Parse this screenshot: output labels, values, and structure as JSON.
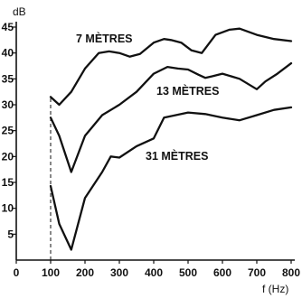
{
  "chart_data": {
    "type": "line",
    "xlabel": "f (Hz)",
    "ylabel": "dB",
    "xlim": [
      0,
      800
    ],
    "ylim": [
      0,
      45
    ],
    "x_ticks": [
      0,
      100,
      200,
      300,
      400,
      500,
      600,
      700,
      800
    ],
    "y_ticks": [
      5,
      10,
      15,
      20,
      25,
      30,
      35,
      40,
      45
    ],
    "grid": false,
    "reference_line": {
      "x": 100,
      "y_from": 0,
      "y_to": 31.5
    },
    "series": [
      {
        "name": "7 MÈTRES",
        "x": [
          100,
          125,
          160,
          200,
          240,
          270,
          300,
          330,
          360,
          400,
          430,
          450,
          480,
          510,
          540,
          580,
          620,
          650,
          700,
          750,
          800
        ],
        "y": [
          31.5,
          30,
          32.5,
          37,
          40,
          40.3,
          40,
          39.3,
          39.8,
          42,
          42.7,
          42.5,
          42,
          40.5,
          40,
          43.5,
          44.5,
          44.7,
          43.5,
          42.7,
          42.3
        ]
      },
      {
        "name": "13 MÈTRES",
        "x": [
          100,
          125,
          160,
          200,
          250,
          300,
          350,
          400,
          440,
          470,
          500,
          530,
          550,
          570,
          600,
          650,
          700,
          725,
          760,
          800
        ],
        "y": [
          27.5,
          24,
          17,
          24,
          28,
          30,
          32.5,
          36,
          37.3,
          37,
          36.8,
          35.8,
          35.2,
          35.5,
          36,
          35,
          33,
          34.5,
          36,
          38
        ]
      },
      {
        "name": "31 MÈTRES",
        "x": [
          100,
          125,
          160,
          200,
          250,
          275,
          300,
          350,
          400,
          430,
          500,
          550,
          600,
          650,
          700,
          750,
          800
        ],
        "y": [
          14.3,
          7,
          2,
          12,
          17,
          20,
          19.8,
          22,
          23.5,
          27.5,
          28.5,
          28.2,
          27.5,
          27,
          28,
          29,
          29.5
        ]
      }
    ]
  }
}
